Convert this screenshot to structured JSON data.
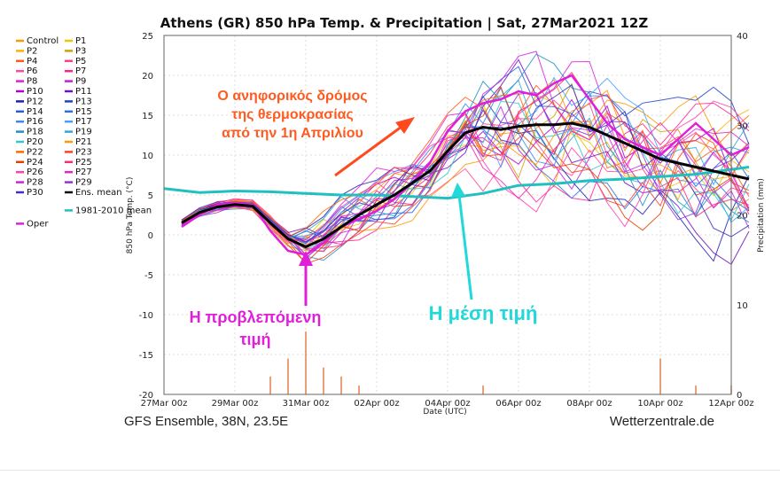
{
  "chart_data": {
    "type": "line",
    "title": "Athens  (GR)  850 hPa Temp. & Precipitation | Sat, 27Mar2021 12Z",
    "ylabel_left": "850 hPa Temp. (°C)",
    "ylabel_right": "Precipitation (mm)",
    "xlabel": "Date (UTC)",
    "ylim_left": [
      -20,
      25
    ],
    "ylim_right": [
      0,
      40
    ],
    "xlim_days": [
      0,
      16
    ],
    "yticks_left": [
      "25",
      "20",
      "15",
      "10",
      "5",
      "0",
      "-5",
      "-10",
      "-15",
      "-20"
    ],
    "yticks_right": [
      "40",
      "30",
      "20",
      "10",
      "0"
    ],
    "xticks": [
      {
        "day": 0,
        "label": "27Mar 00z"
      },
      {
        "day": 2,
        "label": "29Mar 00z"
      },
      {
        "day": 4,
        "label": "31Mar 00z"
      },
      {
        "day": 6,
        "label": "02Apr 00z"
      },
      {
        "day": 8,
        "label": "04Apr 00z"
      },
      {
        "day": 10,
        "label": "06Apr 00z"
      },
      {
        "day": 12,
        "label": "08Apr 00z"
      },
      {
        "day": 14,
        "label": "10Apr 00z"
      },
      {
        "day": 16,
        "label": "12Apr 00z"
      }
    ],
    "grid": true,
    "legend_position": "left",
    "legend": [
      {
        "name": "Control",
        "color": "#ff9900"
      },
      {
        "name": "P1",
        "color": "#e8c800"
      },
      {
        "name": "P2",
        "color": "#ffb000"
      },
      {
        "name": "P3",
        "color": "#d4a000"
      },
      {
        "name": "P4",
        "color": "#ff5a1f"
      },
      {
        "name": "P5",
        "color": "#ff3c8c"
      },
      {
        "name": "P6",
        "color": "#ff4aa0"
      },
      {
        "name": "P7",
        "color": "#ff2090"
      },
      {
        "name": "P8",
        "color": "#e020d8"
      },
      {
        "name": "P9",
        "color": "#c020e0"
      },
      {
        "name": "P10",
        "color": "#b000d0"
      },
      {
        "name": "P11",
        "color": "#7010c0"
      },
      {
        "name": "P12",
        "color": "#2020b0"
      },
      {
        "name": "P13",
        "color": "#2040d0"
      },
      {
        "name": "P14",
        "color": "#2060e0"
      },
      {
        "name": "P15",
        "color": "#2a70e8"
      },
      {
        "name": "P16",
        "color": "#3a8af0"
      },
      {
        "name": "P17",
        "color": "#40a0ff"
      },
      {
        "name": "P18",
        "color": "#2090c0"
      },
      {
        "name": "P19",
        "color": "#30a8d8"
      },
      {
        "name": "P20",
        "color": "#30c8c8"
      },
      {
        "name": "P21",
        "color": "#ff9900"
      },
      {
        "name": "P22",
        "color": "#ff6a00"
      },
      {
        "name": "P23",
        "color": "#ff4020"
      },
      {
        "name": "P24",
        "color": "#e04000"
      },
      {
        "name": "P25",
        "color": "#ff2a6a"
      },
      {
        "name": "P26",
        "color": "#ff40b0"
      },
      {
        "name": "P27",
        "color": "#f020c0"
      },
      {
        "name": "P28",
        "color": "#d020e0"
      },
      {
        "name": "P29",
        "color": "#9030e0"
      },
      {
        "name": "P30",
        "color": "#4030c0"
      },
      {
        "name": "Ens. mean",
        "color": "#000000"
      },
      {
        "name": "1981-2010 mean",
        "color": "#20c0c0"
      },
      {
        "name": "Oper",
        "color": "#e020d8"
      }
    ],
    "series": [
      {
        "name": "Ens. mean",
        "color": "#000000",
        "x": [
          0.5,
          1.0,
          1.5,
          2.0,
          2.5,
          3.0,
          3.5,
          4.0,
          4.5,
          5.0,
          5.5,
          6.0,
          6.5,
          7.0,
          7.5,
          8.0,
          8.5,
          9.0,
          9.5,
          10.0,
          10.5,
          11.0,
          11.5,
          12.0,
          12.5,
          13.0,
          13.5,
          14.0,
          14.5,
          15.0,
          15.5,
          16.0,
          16.5
        ],
        "y": [
          1.5,
          2.8,
          3.5,
          3.8,
          3.6,
          1.5,
          -0.5,
          -1.5,
          -0.5,
          1.0,
          2.5,
          3.8,
          5.0,
          6.5,
          8.0,
          10.5,
          12.8,
          13.5,
          13.2,
          13.6,
          13.8,
          13.8,
          14.0,
          13.5,
          12.5,
          11.5,
          10.5,
          9.5,
          9.0,
          8.5,
          8.0,
          7.5,
          7.0
        ]
      },
      {
        "name": "1981-2010 mean",
        "color": "#20c0c0",
        "x": [
          0.0,
          1.0,
          2.0,
          3.0,
          4.0,
          5.0,
          6.0,
          7.0,
          8.0,
          9.0,
          10.0,
          11.0,
          12.0,
          13.0,
          14.0,
          15.0,
          16.0,
          16.5
        ],
        "y": [
          5.8,
          5.3,
          5.5,
          5.4,
          5.2,
          5.0,
          5.0,
          4.8,
          4.6,
          5.2,
          6.2,
          6.4,
          6.8,
          7.0,
          7.3,
          7.6,
          8.2,
          8.5
        ]
      },
      {
        "name": "Oper",
        "color": "#e020d8",
        "x": [
          0.5,
          1.0,
          1.5,
          2.0,
          2.5,
          3.0,
          3.5,
          4.0,
          4.5,
          5.0,
          5.5,
          6.0,
          6.5,
          7.0,
          7.5,
          8.0,
          8.5,
          9.0,
          9.5,
          10.0,
          10.5,
          11.0,
          11.5,
          12.0,
          12.5,
          13.0,
          13.5,
          14.0,
          14.5,
          15.0,
          15.5,
          16.0,
          16.5
        ],
        "y": [
          1.0,
          2.5,
          3.8,
          4.0,
          3.8,
          0.5,
          -2.0,
          -2.5,
          -1.0,
          1.0,
          2.0,
          3.0,
          4.5,
          6.5,
          9.0,
          13.0,
          15.5,
          16.5,
          17.0,
          18.0,
          17.5,
          19.0,
          20.0,
          17.0,
          14.0,
          12.0,
          11.0,
          10.0,
          12.0,
          14.0,
          12.0,
          10.0,
          11.0
        ]
      }
    ],
    "precipitation": {
      "unit": "mm",
      "note": "spikes mostly around 30-31 Mar and 10 Apr",
      "x": [
        3.0,
        3.5,
        4.0,
        4.5,
        5.0,
        5.5,
        9.0,
        14.0,
        15.0,
        16.0
      ],
      "y": [
        2,
        4,
        7,
        3,
        2,
        1,
        1,
        4,
        1,
        1
      ]
    },
    "footer_left": "GFS Ensemble, 38N, 23.5E",
    "footer_right": "Wetterzentrale.de",
    "annotations": {
      "orange": [
        "Ο ανηφορικός δρόμος",
        "της θερμοκρασίας",
        "από την 1η Απριλίου"
      ],
      "magenta": [
        "Η προβλεπόμενη",
        "τιμή"
      ],
      "cyan": "Η μέση τιμή"
    }
  }
}
